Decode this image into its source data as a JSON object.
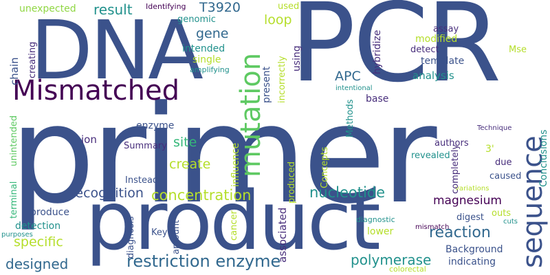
{
  "palette": {
    "dark_blue": "#3b528b",
    "deep_purple": "#440154",
    "indigo": "#472d7b",
    "slate": "#31688e",
    "teal": "#21918c",
    "sea": "#35b779",
    "lime": "#90d743",
    "yellow_green": "#b5de2b",
    "background": "#ffffff"
  },
  "words": [
    {
      "text": "primer",
      "color": "#3b528b"
    },
    {
      "text": "PCR",
      "color": "#3b528b"
    },
    {
      "text": "DNA",
      "color": "#3b528b"
    },
    {
      "text": "product",
      "color": "#3b528b"
    },
    {
      "text": "Mismatched",
      "color": "#440154"
    },
    {
      "text": "mutation",
      "color": "#5ec962"
    },
    {
      "text": "sequence",
      "color": "#3b528b"
    },
    {
      "text": "restriction enzyme",
      "color": "#31688e"
    },
    {
      "text": "concentration",
      "color": "#b5de2b"
    },
    {
      "text": "nucleotide",
      "color": "#21918c"
    },
    {
      "text": "magnesium",
      "color": "#440154"
    },
    {
      "text": "reaction",
      "color": "#31688e"
    },
    {
      "text": "polymerase",
      "color": "#21918c"
    },
    {
      "text": "recognition",
      "color": "#3b528b"
    },
    {
      "text": "designed",
      "color": "#31688e"
    },
    {
      "text": "specific",
      "color": "#b5de2b"
    },
    {
      "text": "create",
      "color": "#b5de2b"
    },
    {
      "text": "site",
      "color": "#35b779"
    },
    {
      "text": "result",
      "color": "#21918c"
    },
    {
      "text": "gene",
      "color": "#31688e"
    },
    {
      "text": "loop",
      "color": "#b5de2b"
    },
    {
      "text": "APC",
      "color": "#31688e"
    },
    {
      "text": "T3920",
      "color": "#31688e"
    },
    {
      "text": "unexpected",
      "color": "#90d743"
    },
    {
      "text": "Identifying",
      "color": "#440154"
    },
    {
      "text": "genomic",
      "color": "#21918c"
    },
    {
      "text": "intended",
      "color": "#21918c"
    },
    {
      "text": "single",
      "color": "#b5de2b"
    },
    {
      "text": "amplifying",
      "color": "#21918c"
    },
    {
      "text": "used",
      "color": "#b5de2b"
    },
    {
      "text": "assay",
      "color": "#472d7b"
    },
    {
      "text": "modified",
      "color": "#b5de2b"
    },
    {
      "text": "detect",
      "color": "#472d7b"
    },
    {
      "text": "template",
      "color": "#3b528b"
    },
    {
      "text": "analysis",
      "color": "#21918c"
    },
    {
      "text": "Mse",
      "color": "#b5de2b"
    },
    {
      "text": "base",
      "color": "#472d7b"
    },
    {
      "text": "intentional",
      "color": "#21918c"
    },
    {
      "text": "chain",
      "color": "#3b528b"
    },
    {
      "text": "creating",
      "color": "#472d7b"
    },
    {
      "text": "unintended",
      "color": "#5ec962"
    },
    {
      "text": "terminal",
      "color": "#35b779"
    },
    {
      "text": "ion",
      "color": "#472d7b"
    },
    {
      "text": "enzyme",
      "color": "#3b528b"
    },
    {
      "text": "Summary",
      "color": "#472d7b"
    },
    {
      "text": "Instead",
      "color": "#3b528b"
    },
    {
      "text": "produce",
      "color": "#3b528b"
    },
    {
      "text": "detection",
      "color": "#21918c"
    },
    {
      "text": "purposes",
      "color": "#21918c"
    },
    {
      "text": "Key",
      "color": "#3b528b"
    },
    {
      "text": "amount",
      "color": "#3b528b"
    },
    {
      "text": "diagnosis",
      "color": "#3b528b"
    },
    {
      "text": "cancer",
      "color": "#b5de2b"
    },
    {
      "text": "influence",
      "color": "#b5de2b"
    },
    {
      "text": "Concepts",
      "color": "#b5de2b"
    },
    {
      "text": "produced",
      "color": "#b5de2b"
    },
    {
      "text": "associated",
      "color": "#472d7b"
    },
    {
      "text": "present",
      "color": "#3b528b"
    },
    {
      "text": "incorrectly",
      "color": "#b5de2b"
    },
    {
      "text": "using",
      "color": "#472d7b"
    },
    {
      "text": "hybridize",
      "color": "#472d7b"
    },
    {
      "text": "Methods",
      "color": "#21918c"
    },
    {
      "text": "authors",
      "color": "#472d7b"
    },
    {
      "text": "revealed",
      "color": "#21918c"
    },
    {
      "text": "completely",
      "color": "#472d7b"
    },
    {
      "text": "3'",
      "color": "#b5de2b"
    },
    {
      "text": "due",
      "color": "#472d7b"
    },
    {
      "text": "caused",
      "color": "#3b528b"
    },
    {
      "text": "Technique",
      "color": "#472d7b"
    },
    {
      "text": "Conclusions",
      "color": "#21918c"
    },
    {
      "text": "variations",
      "color": "#b5de2b"
    },
    {
      "text": "outs",
      "color": "#b5de2b"
    },
    {
      "text": "digest",
      "color": "#3b528b"
    },
    {
      "text": "cuts",
      "color": "#21918c"
    },
    {
      "text": "mismatch",
      "color": "#440154"
    },
    {
      "text": "diagnostic",
      "color": "#21918c"
    },
    {
      "text": "lower",
      "color": "#b5de2b"
    },
    {
      "text": "Background",
      "color": "#3b528b"
    },
    {
      "text": "indicating",
      "color": "#3b528b"
    },
    {
      "text": "colorectal",
      "color": "#b5de2b"
    }
  ]
}
